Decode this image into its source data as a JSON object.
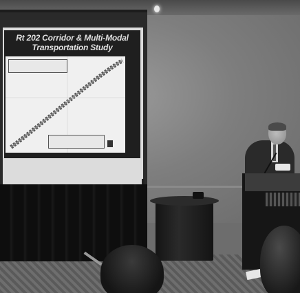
{
  "slide": {
    "title_line1": "Rt 202 Corridor & Multi-Modal",
    "title_line2": "Transportation Study"
  }
}
